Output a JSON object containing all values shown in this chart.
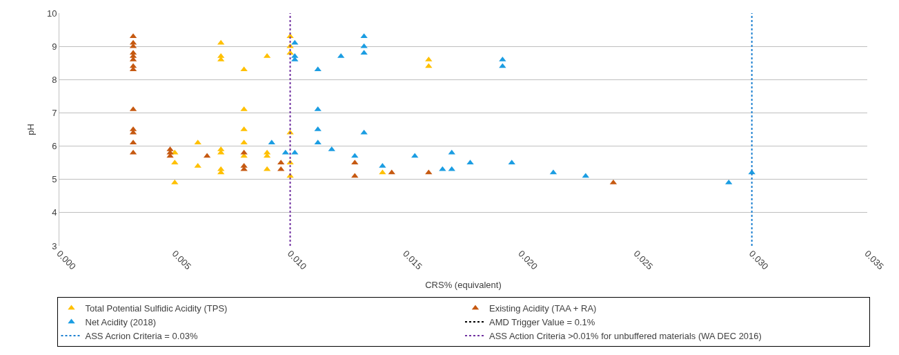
{
  "chart_data": {
    "type": "scatter",
    "xlabel": "CRS% (equivalent)",
    "ylabel": "pH",
    "xlim": [
      0,
      0.035
    ],
    "xticks": [
      {
        "value": 0,
        "label": "0.000"
      },
      {
        "value": 0.005,
        "label": "0.005"
      },
      {
        "value": 0.01,
        "label": "0.010"
      },
      {
        "value": 0.015,
        "label": "0.015"
      },
      {
        "value": 0.02,
        "label": "0.020"
      },
      {
        "value": 0.025,
        "label": "0.025"
      },
      {
        "value": 0.03,
        "label": "0.030"
      },
      {
        "value": 0.035,
        "label": "0.035"
      }
    ],
    "ylim": [
      3,
      10
    ],
    "yticks": [
      3,
      4,
      5,
      6,
      7,
      8,
      9,
      10
    ],
    "grid": "y",
    "legend": "bottom",
    "marker": "triangle",
    "series": [
      {
        "name": "Total Potential Sulfidic Acidity (TPS)",
        "color": "#ffc000",
        "x": [
          0.005,
          0.005,
          0.005,
          0.006,
          0.006,
          0.007,
          0.007,
          0.007,
          0.007,
          0.007,
          0.007,
          0.007,
          0.008,
          0.008,
          0.008,
          0.008,
          0.008,
          0.009,
          0.009,
          0.009,
          0.009,
          0.01,
          0.01,
          0.01,
          0.01,
          0.01,
          0.01,
          0.014,
          0.016,
          0.016
        ],
        "values": [
          5.8,
          5.5,
          4.9,
          6.1,
          5.4,
          9.1,
          8.7,
          8.6,
          5.9,
          5.8,
          5.3,
          5.2,
          8.3,
          7.1,
          6.5,
          6.1,
          5.7,
          8.7,
          5.8,
          5.7,
          5.3,
          9.3,
          9.0,
          8.8,
          6.4,
          5.5,
          5.1,
          5.2,
          8.6,
          8.4
        ]
      },
      {
        "name": "Existing Acidity (TAA + RA)",
        "color": "#c65911",
        "x": [
          0.0032,
          0.0032,
          0.0032,
          0.0032,
          0.0032,
          0.0032,
          0.0032,
          0.0032,
          0.0032,
          0.0032,
          0.0032,
          0.0032,
          0.0032,
          0.0048,
          0.0048,
          0.0048,
          0.0064,
          0.008,
          0.008,
          0.008,
          0.0096,
          0.0096,
          0.0128,
          0.0128,
          0.0144,
          0.016,
          0.024
        ],
        "values": [
          9.3,
          9.1,
          9.0,
          8.8,
          8.7,
          8.6,
          8.4,
          8.3,
          7.1,
          6.5,
          6.4,
          6.1,
          5.8,
          5.9,
          5.8,
          5.7,
          5.7,
          5.8,
          5.4,
          5.3,
          5.5,
          5.3,
          5.5,
          5.1,
          5.2,
          5.2,
          4.9
        ]
      },
      {
        "name": "Net Acidity (2018)",
        "color": "#1b9de2",
        "x": [
          0.0092,
          0.0098,
          0.0102,
          0.0102,
          0.0102,
          0.0102,
          0.0112,
          0.0112,
          0.0112,
          0.0112,
          0.0118,
          0.0122,
          0.0128,
          0.0132,
          0.0132,
          0.0132,
          0.0132,
          0.014,
          0.0154,
          0.0166,
          0.017,
          0.017,
          0.0178,
          0.0192,
          0.0192,
          0.0196,
          0.0214,
          0.0228,
          0.029,
          0.03
        ],
        "values": [
          6.1,
          5.8,
          9.1,
          8.7,
          8.6,
          5.8,
          8.3,
          7.1,
          6.5,
          6.1,
          5.9,
          8.7,
          5.7,
          9.3,
          9.0,
          8.8,
          6.4,
          5.4,
          5.7,
          5.3,
          5.8,
          5.3,
          5.5,
          8.6,
          8.4,
          5.5,
          5.2,
          5.1,
          4.9,
          5.2
        ]
      },
      {
        "name": "AMD Trigger Value = 0.1%",
        "type": "line",
        "color": "#000000",
        "line_style": "dotted",
        "x": [
          null
        ],
        "values": [
          null
        ]
      }
    ],
    "ref_lines": [
      {
        "axis": "x",
        "value": 0.03,
        "label": "ASS Acrion Criteria = 0.03%",
        "color": "#1b7fd0",
        "line_style": "dotted"
      },
      {
        "axis": "x",
        "value": 0.01,
        "label": "ASS Action Criteria >0.01% for unbuffered materials (WA DEC 2016)",
        "color": "#7030a0",
        "line_style": "dotted"
      }
    ]
  }
}
